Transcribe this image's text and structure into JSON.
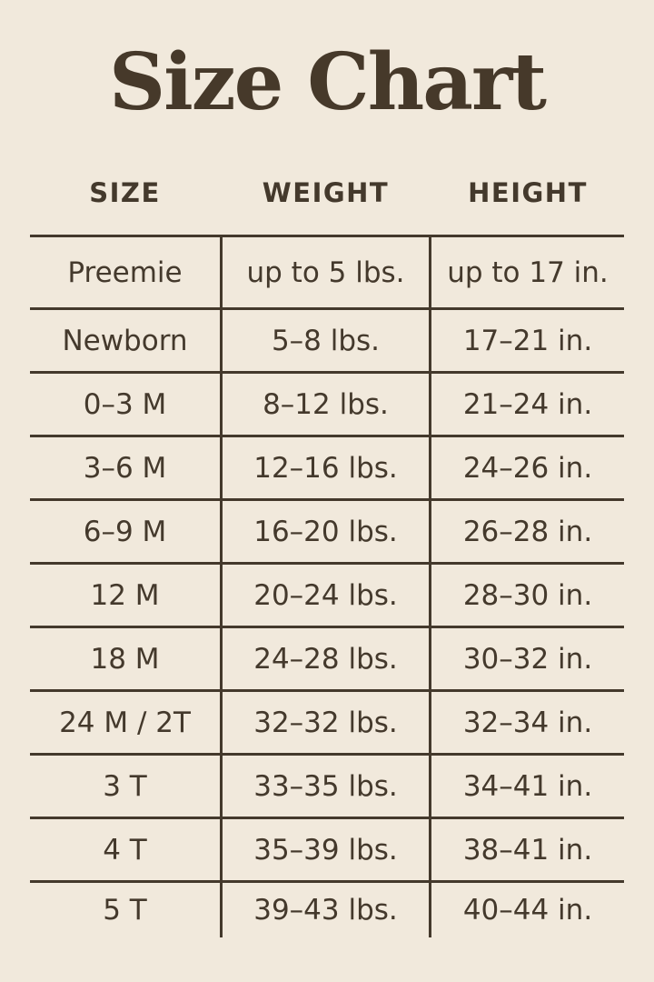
{
  "colors": {
    "bg": "#f1e9dc",
    "ink": "#44392c",
    "title": "#46392a"
  },
  "chart_data": {
    "type": "table",
    "title": "Size Chart",
    "columns": [
      "SIZE",
      "WEIGHT",
      "HEIGHT"
    ],
    "rows": [
      [
        "Preemie",
        "up to 5 lbs.",
        "up to 17 in."
      ],
      [
        "Newborn",
        "5–8 lbs.",
        "17–21 in."
      ],
      [
        "0–3 M",
        "8–12 lbs.",
        "21–24 in."
      ],
      [
        "3–6 M",
        "12–16 lbs.",
        "24–26 in."
      ],
      [
        "6–9 M",
        "16–20 lbs.",
        "26–28 in."
      ],
      [
        "12 M",
        "20–24 lbs.",
        "28–30 in."
      ],
      [
        "18 M",
        "24–28 lbs.",
        "30–32 in."
      ],
      [
        "24 M / 2T",
        "32–32 lbs.",
        "32–34 in."
      ],
      [
        "3 T",
        "33–35 lbs.",
        "34–41 in."
      ],
      [
        "4 T",
        "35–39 lbs.",
        "38–41 in."
      ],
      [
        "5 T",
        "39–43 lbs.",
        "40–44 in."
      ]
    ]
  }
}
